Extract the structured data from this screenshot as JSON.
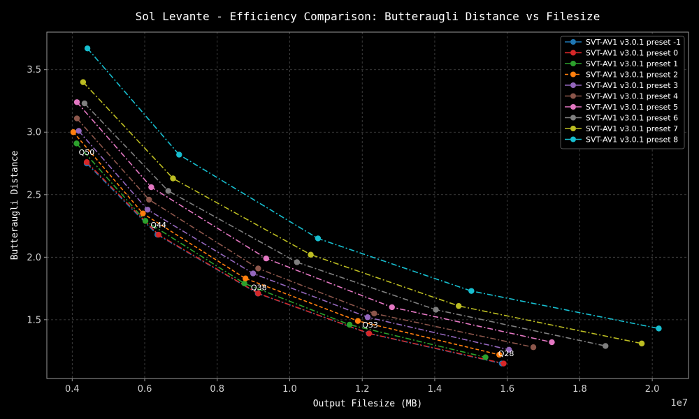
{
  "chart_data": {
    "type": "line",
    "title": "Sol Levante - Efficiency Comparison: Butteraugli Distance vs Filesize",
    "xlabel": "Output Filesize (MB)",
    "ylabel": "Butteraugli Distance",
    "x_offset_label": "1e7",
    "xlim": [
      3300000,
      21000000
    ],
    "ylim": [
      1.03,
      3.8
    ],
    "x_ticks": [
      4000000,
      6000000,
      8000000,
      10000000,
      12000000,
      14000000,
      16000000,
      18000000,
      20000000
    ],
    "x_tick_labels": [
      "0.4",
      "0.6",
      "0.8",
      "1.0",
      "1.2",
      "1.4",
      "1.6",
      "1.8",
      "2.0"
    ],
    "y_ticks": [
      1.5,
      2.0,
      2.5,
      3.0,
      3.5
    ],
    "y_tick_labels": [
      "1.5",
      "2.0",
      "2.5",
      "3.0",
      "3.5"
    ],
    "grid": true,
    "legend_position": "top-right",
    "series": [
      {
        "name": "SVT-AV1 v3.0.1 preset -1",
        "color": "#1f77b4",
        "dash": "8,3,2,3",
        "x": [
          4400000,
          6350000,
          9120000,
          12180000,
          15850000
        ],
        "y": [
          2.75,
          2.18,
          1.71,
          1.39,
          1.15
        ]
      },
      {
        "name": "SVT-AV1 v3.0.1 preset 0",
        "color": "#d62728",
        "dash": "8,3,2,3",
        "x": [
          4400000,
          6380000,
          9130000,
          12190000,
          15900000
        ],
        "y": [
          2.76,
          2.18,
          1.71,
          1.39,
          1.15
        ]
      },
      {
        "name": "SVT-AV1 v3.0.1 preset 1",
        "color": "#2ca02c",
        "dash": "8,3,2,3",
        "x": [
          4120000,
          6020000,
          8750000,
          11650000,
          15400000
        ],
        "y": [
          2.91,
          2.29,
          1.79,
          1.46,
          1.2
        ]
      },
      {
        "name": "SVT-AV1 v3.0.1 preset 2",
        "color": "#ff7f0e",
        "dash": "5,3",
        "x": [
          4030000,
          5950000,
          8780000,
          11880000,
          15780000
        ],
        "y": [
          3.0,
          2.35,
          1.83,
          1.49,
          1.22
        ]
      },
      {
        "name": "SVT-AV1 v3.0.1 preset 3",
        "color": "#9467bd",
        "dash": "8,3,2,3",
        "x": [
          4180000,
          6080000,
          8990000,
          12150000,
          16050000
        ],
        "y": [
          3.01,
          2.38,
          1.87,
          1.52,
          1.26
        ]
      },
      {
        "name": "SVT-AV1 v3.0.1 preset 4",
        "color": "#8c564b",
        "dash": "8,3,2,3",
        "x": [
          4130000,
          6120000,
          9130000,
          12330000,
          16720000
        ],
        "y": [
          3.11,
          2.46,
          1.91,
          1.55,
          1.28
        ]
      },
      {
        "name": "SVT-AV1 v3.0.1 preset 5",
        "color": "#e377c2",
        "dash": "8,3,2,3",
        "x": [
          4130000,
          6180000,
          9350000,
          12820000,
          17230000
        ],
        "y": [
          3.24,
          2.56,
          1.99,
          1.6,
          1.32
        ]
      },
      {
        "name": "SVT-AV1 v3.0.1 preset 6",
        "color": "#7f7f7f",
        "dash": "8,3,2,3",
        "x": [
          4340000,
          6650000,
          10200000,
          14030000,
          18710000
        ],
        "y": [
          3.23,
          2.53,
          1.96,
          1.58,
          1.29
        ]
      },
      {
        "name": "SVT-AV1 v3.0.1 preset 7",
        "color": "#bcbd22",
        "dash": "8,3,2,3",
        "x": [
          4300000,
          6780000,
          10580000,
          14660000,
          19710000
        ],
        "y": [
          3.4,
          2.63,
          2.02,
          1.61,
          1.31
        ]
      },
      {
        "name": "SVT-AV1 v3.0.1 preset 8",
        "color": "#17becf",
        "dash": "8,3,2,3",
        "x": [
          4420000,
          6950000,
          10780000,
          15010000,
          20180000
        ],
        "y": [
          3.67,
          2.82,
          2.15,
          1.73,
          1.43
        ]
      }
    ],
    "annotations": [
      {
        "text": "Q50",
        "x": 4180000,
        "y": 2.84
      },
      {
        "text": "Q44",
        "x": 6160000,
        "y": 2.26
      },
      {
        "text": "Q38",
        "x": 8930000,
        "y": 1.76
      },
      {
        "text": "Q33",
        "x": 12000000,
        "y": 1.46
      },
      {
        "text": "Q28",
        "x": 15750000,
        "y": 1.23
      }
    ]
  }
}
